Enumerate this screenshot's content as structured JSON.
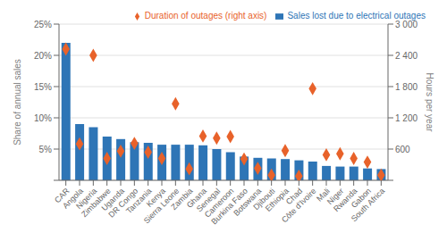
{
  "chart_data": {
    "type": "bar",
    "categories": [
      "CAR",
      "Angola",
      "Nigeria",
      "Zimbabwe",
      "Uganda",
      "DR Congo",
      "Tanzania",
      "Kenya",
      "Sierra Leone",
      "Zambia",
      "Ghana",
      "Senegal",
      "Cameroon",
      "Burkina Faso",
      "Botswana",
      "Djibouti",
      "Ethiopia",
      "Chad",
      "Côte d'Ivoire",
      "Mali",
      "Niger",
      "Rwanda",
      "Gabon",
      "South Africa"
    ],
    "series": [
      {
        "name": "Sales lost due to electrical outages",
        "type": "bar",
        "color": "#2e75b6",
        "values": [
          22.0,
          9.0,
          8.5,
          7.0,
          6.6,
          6.1,
          6.0,
          5.7,
          5.7,
          5.7,
          5.6,
          5.0,
          4.5,
          3.8,
          3.6,
          3.5,
          3.4,
          3.2,
          3.0,
          2.3,
          2.2,
          2.2,
          1.9,
          1.8
        ]
      },
      {
        "name": "Duration of outages (right axis)",
        "type": "scatter",
        "axis": "y2",
        "marker": "diamond",
        "color": "#e8622a",
        "values": [
          2520,
          700,
          2400,
          420,
          560,
          710,
          540,
          420,
          1470,
          220,
          850,
          810,
          840,
          410,
          230,
          100,
          570,
          80,
          1760,
          490,
          510,
          420,
          350,
          100
        ]
      }
    ],
    "ylabel": "Share of annual sales",
    "y2label": "Hours per year",
    "ylim": [
      0,
      25
    ],
    "yticks": [
      {
        "value": 0,
        "label": ""
      },
      {
        "value": 5,
        "label": "5%"
      },
      {
        "value": 10,
        "label": "10%"
      },
      {
        "value": 15,
        "label": "15%"
      },
      {
        "value": 20,
        "label": "20%"
      },
      {
        "value": 25,
        "label": "25%"
      }
    ],
    "y2lim": [
      0,
      3000
    ],
    "y2ticks": [
      {
        "value": 0,
        "label": ""
      },
      600,
      {
        "value": 1200,
        "label": "1 200"
      },
      {
        "value": 1800,
        "label": "1 800"
      },
      {
        "value": 2400,
        "label": "2 400"
      },
      {
        "value": 3000,
        "label": "3 000"
      }
    ],
    "grid": true,
    "legend": "upper right"
  }
}
